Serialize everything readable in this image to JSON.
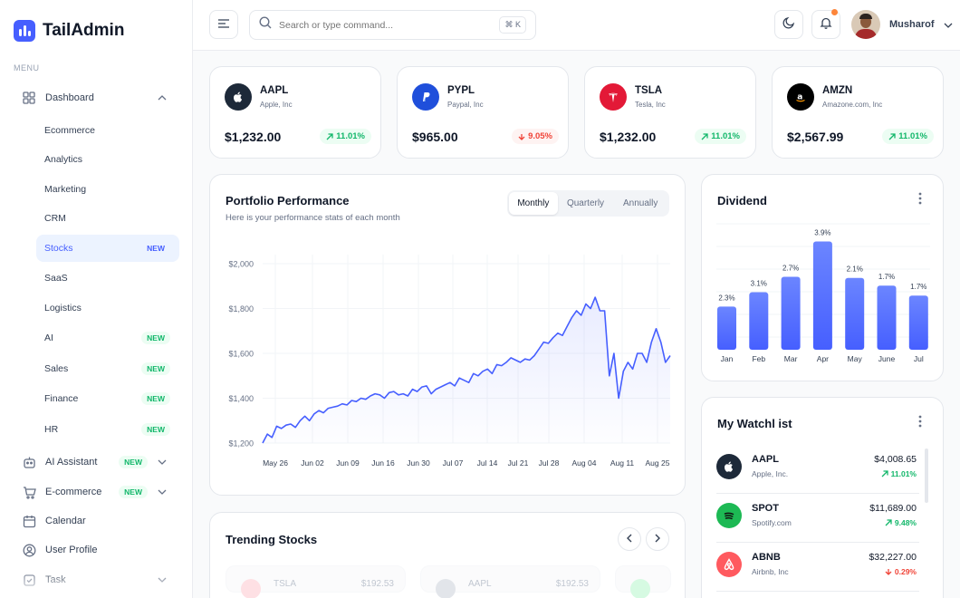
{
  "app": {
    "name": "TailAdmin",
    "menu_label": "MENU"
  },
  "sidebar": {
    "dashboard": {
      "label": "Dashboard",
      "icon": "grid-icon"
    },
    "sub_items": [
      {
        "label": "Ecommerce",
        "badge": ""
      },
      {
        "label": "Analytics",
        "badge": ""
      },
      {
        "label": "Marketing",
        "badge": ""
      },
      {
        "label": "CRM",
        "badge": ""
      },
      {
        "label": "Stocks",
        "badge": "NEW"
      },
      {
        "label": "SaaS",
        "badge": ""
      },
      {
        "label": "Logistics",
        "badge": ""
      },
      {
        "label": "AI",
        "badge": "NEW"
      },
      {
        "label": "Sales",
        "badge": "NEW"
      },
      {
        "label": "Finance",
        "badge": "NEW"
      },
      {
        "label": "HR",
        "badge": "NEW"
      }
    ],
    "items": [
      {
        "label": "AI Assistant",
        "badge": "NEW",
        "icon": "robot-icon"
      },
      {
        "label": "E-commerce",
        "badge": "NEW",
        "icon": "cart-icon"
      },
      {
        "label": "Calendar",
        "badge": "",
        "icon": "calendar-icon"
      },
      {
        "label": "User Profile",
        "badge": "",
        "icon": "user-circle-icon"
      },
      {
        "label": "Task",
        "badge": "",
        "icon": "task-icon"
      }
    ]
  },
  "header": {
    "search_placeholder": "Search or type command...",
    "shortcut": "⌘ K",
    "user_name": "Musharof"
  },
  "stocks": [
    {
      "symbol": "AAPL",
      "company": "Apple, Inc",
      "price": "$1,232.00",
      "change": "11.01%",
      "direction": "up",
      "color": "#1d2939",
      "icon": "apple-icon"
    },
    {
      "symbol": "PYPL",
      "company": "Paypal, Inc",
      "price": "$965.00",
      "change": "9.05%",
      "direction": "down",
      "color": "#1f4fdb",
      "icon": "paypal-icon"
    },
    {
      "symbol": "TSLA",
      "company": "Tesla, Inc",
      "price": "$1,232.00",
      "change": "11.01%",
      "direction": "up",
      "color": "#e31937",
      "icon": "tesla-icon"
    },
    {
      "symbol": "AMZN",
      "company": "Amazone.com, Inc",
      "price": "$2,567.99",
      "change": "11.01%",
      "direction": "up",
      "color": "#000000",
      "icon": "amazon-icon"
    }
  ],
  "portfolio": {
    "title": "Portfolio Performance",
    "subtitle": "Here is your performance stats of each month",
    "tabs": [
      "Monthly",
      "Quarterly",
      "Annually"
    ],
    "active_tab": "Monthly"
  },
  "dividend": {
    "title": "Dividend"
  },
  "watchlist": {
    "title": "My Watchl  ist",
    "items": [
      {
        "symbol": "AAPL",
        "company": "Apple, Inc.",
        "price": "$4,008.65",
        "change": "11.01%",
        "direction": "up",
        "color": "#1d2939",
        "icon": "apple-icon"
      },
      {
        "symbol": "SPOT",
        "company": "Spotify.com",
        "price": "$11,689.00",
        "change": "9.48%",
        "direction": "up",
        "color": "#1db954",
        "icon": "spotify-icon"
      },
      {
        "symbol": "ABNB",
        "company": "Airbnb, Inc",
        "price": "$32,227.00",
        "change": "0.29%",
        "direction": "down",
        "color": "#ff5a5f",
        "icon": "airbnb-icon"
      }
    ]
  },
  "trending": {
    "title": "Trending Stocks",
    "cards": [
      {
        "symbol": "TSLA",
        "price": "$192.53",
        "color": "#fecdd3"
      },
      {
        "symbol": "AAPL",
        "price": "$192.53",
        "color": "#d0d5dd"
      },
      {
        "symbol": "",
        "price": "",
        "color": "#bbf7d0"
      }
    ]
  },
  "colors": {
    "accent": "#465fff",
    "success": "#12b76a",
    "danger": "#f04438"
  },
  "chart_data": [
    {
      "type": "area",
      "title": "Portfolio Performance",
      "x_ticks": [
        "May 26",
        "Jun 02",
        "Jun 09",
        "Jun 16",
        "Jun 30",
        "Jul 07",
        "Jul 14",
        "Jul 21",
        "Jul 28",
        "Aug 04",
        "Aug 11",
        "Aug 25"
      ],
      "y_ticks": [
        "$1,200",
        "$1,400",
        "$1,600",
        "$1,800",
        "$2,000"
      ],
      "ylim": [
        1200,
        2000
      ],
      "grid": true,
      "series": [
        {
          "values": [
            1200,
            1240,
            1225,
            1275,
            1265,
            1280,
            1285,
            1270,
            1300,
            1320,
            1300,
            1330,
            1345,
            1335,
            1355,
            1360,
            1365,
            1375,
            1370,
            1390,
            1385,
            1400,
            1395,
            1410,
            1420,
            1415,
            1400,
            1425,
            1430,
            1415,
            1420,
            1410,
            1440,
            1430,
            1450,
            1455,
            1420,
            1440,
            1450,
            1460,
            1470,
            1455,
            1490,
            1480,
            1470,
            1510,
            1500,
            1520,
            1530,
            1510,
            1550,
            1545,
            1560,
            1580,
            1570,
            1560,
            1575,
            1570,
            1590,
            1620,
            1650,
            1645,
            1670,
            1690,
            1680,
            1720,
            1760,
            1790,
            1770,
            1820,
            1800,
            1850,
            1790,
            1790,
            1500,
            1600,
            1400,
            1520,
            1560,
            1530,
            1600,
            1600,
            1560,
            1650,
            1710,
            1650,
            1560,
            1590
          ]
        }
      ]
    },
    {
      "type": "bar",
      "title": "Dividend",
      "categories": [
        "Jan",
        "Feb",
        "Mar",
        "Apr",
        "May",
        "June",
        "Jul"
      ],
      "values": [
        2.3,
        3.1,
        2.7,
        3.9,
        2.1,
        1.7,
        1.7
      ],
      "labels": [
        "2.3%",
        "3.1%",
        "2.7%",
        "3.9%",
        "2.1%",
        "1.7%",
        "1.7%"
      ],
      "heights_ratio": [
        0.39,
        0.52,
        0.66,
        0.98,
        0.65,
        0.58,
        0.49
      ]
    }
  ]
}
